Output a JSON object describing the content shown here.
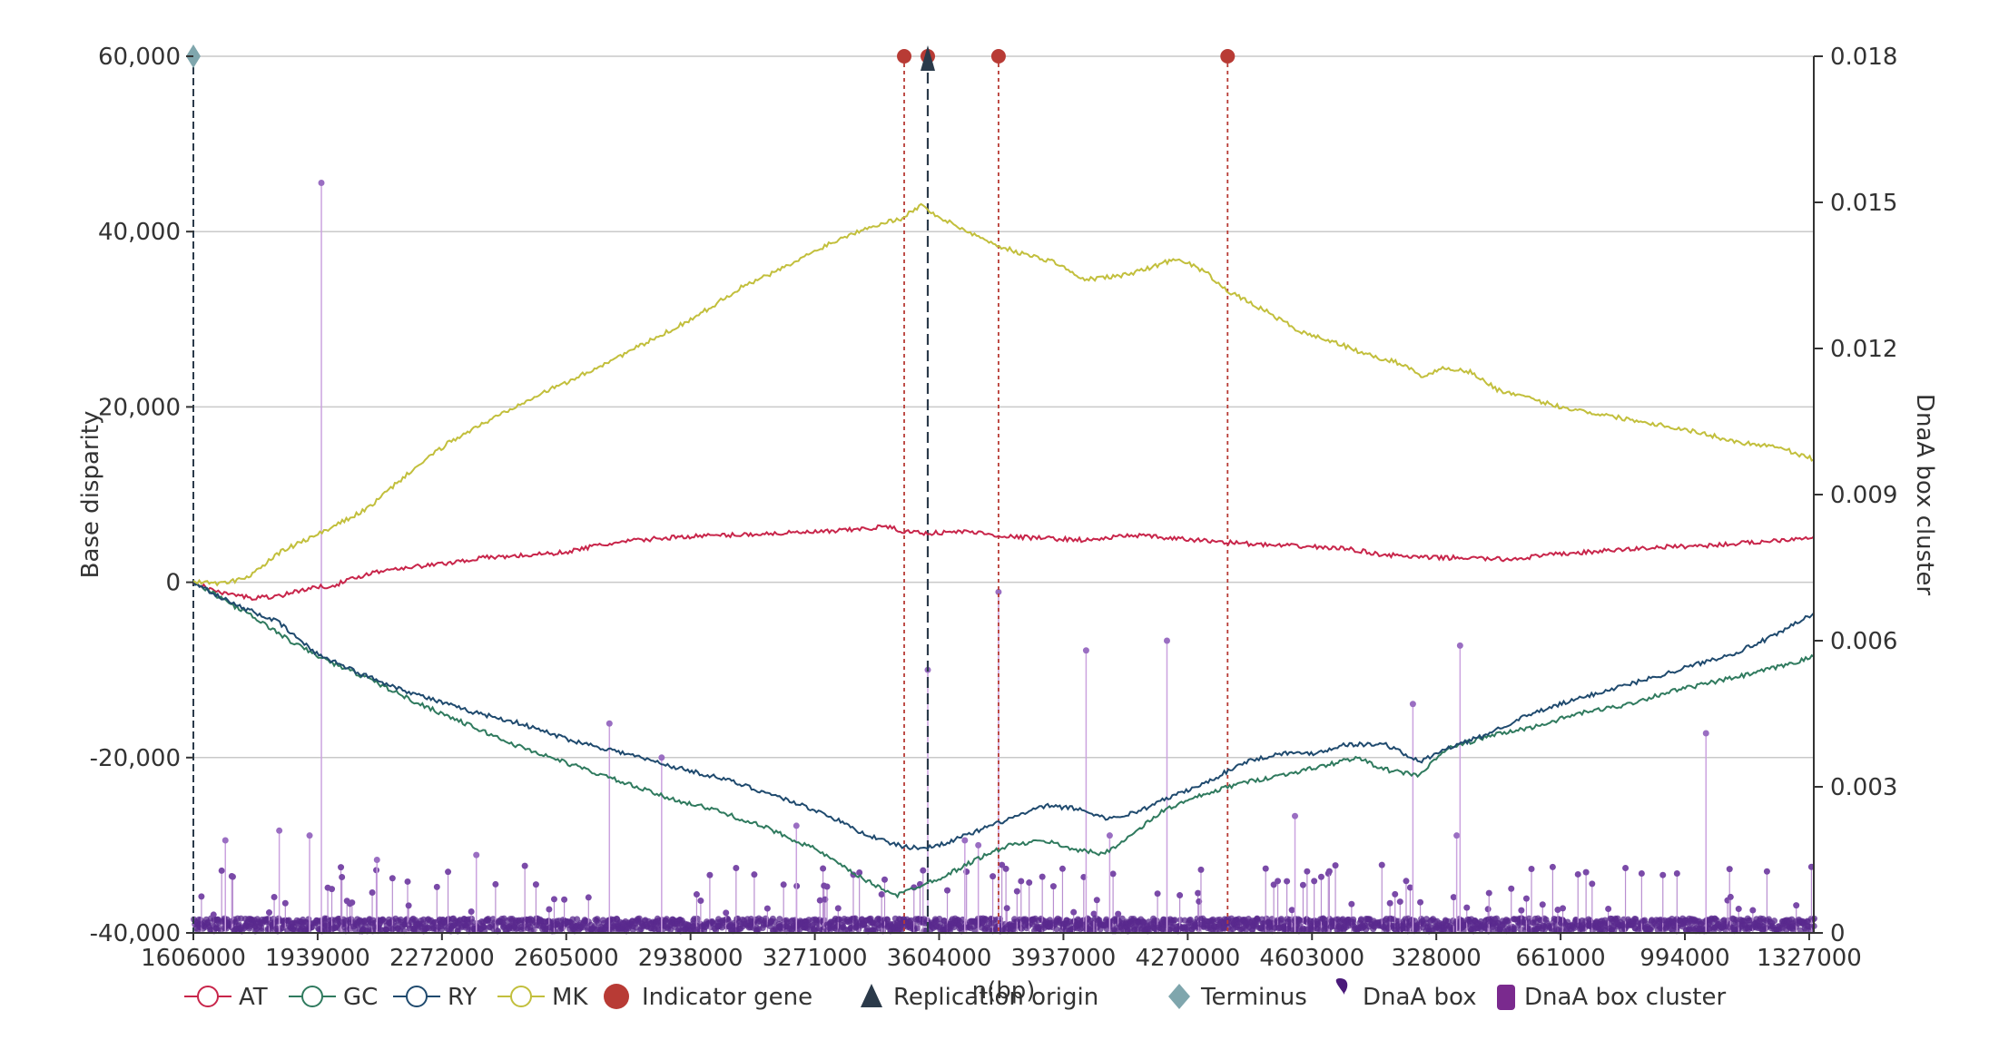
{
  "chart_data": {
    "type": "line",
    "title": "",
    "xlabel": "n(bp)",
    "ylabel": "Base disparity",
    "y2label": "DnaA box cluster",
    "x_ticks": [
      "1606000",
      "1939000",
      "2272000",
      "2605000",
      "2938000",
      "3271000",
      "3604000",
      "3937000",
      "4270000",
      "4603000",
      "328000",
      "661000",
      "994000",
      "1327000"
    ],
    "x_tick_positions_bp_offset_note": "",
    "y_ticks": [
      "60,000",
      "40,000",
      "20,000",
      "0",
      "-20,000",
      "-40,000"
    ],
    "y_tick_values": [
      60000,
      40000,
      20000,
      0,
      -20000,
      -40000
    ],
    "ylim": [
      -40000,
      60000
    ],
    "y2_ticks": [
      "0.018",
      "0.015",
      "0.012",
      "0.009",
      "0.006",
      "0.003",
      "0"
    ],
    "y2_tick_values": [
      0.018,
      0.015,
      0.012,
      0.009,
      0.006,
      0.003,
      0
    ],
    "y2lim": [
      0,
      0.018
    ],
    "grid": "horizontal",
    "legend_position": "bottom",
    "genome_x_range_index": [
      0,
      4810
    ],
    "series": [
      {
        "name": "AT",
        "color": "#c8254a",
        "points": [
          [
            0,
            0
          ],
          [
            80,
            -1200
          ],
          [
            180,
            -1800
          ],
          [
            260,
            -1500
          ],
          [
            330,
            -800
          ],
          [
            420,
            -300
          ],
          [
            520,
            1000
          ],
          [
            600,
            1600
          ],
          [
            720,
            2000
          ],
          [
            860,
            2800
          ],
          [
            960,
            3000
          ],
          [
            1100,
            3400
          ],
          [
            1200,
            4200
          ],
          [
            1320,
            4800
          ],
          [
            1450,
            5200
          ],
          [
            1600,
            5400
          ],
          [
            1750,
            5600
          ],
          [
            1900,
            5800
          ],
          [
            2020,
            6200
          ],
          [
            2050,
            6400
          ],
          [
            2110,
            5800
          ],
          [
            2180,
            5600
          ],
          [
            2300,
            5800
          ],
          [
            2420,
            5200
          ],
          [
            2540,
            5000
          ],
          [
            2660,
            4800
          ],
          [
            2790,
            5400
          ],
          [
            2900,
            5000
          ],
          [
            3060,
            4600
          ],
          [
            3200,
            4200
          ],
          [
            3300,
            4100
          ],
          [
            3430,
            3800
          ],
          [
            3520,
            3200
          ],
          [
            3650,
            2800
          ],
          [
            3770,
            2800
          ],
          [
            3900,
            2600
          ],
          [
            4050,
            3200
          ],
          [
            4200,
            3600
          ],
          [
            4350,
            4000
          ],
          [
            4500,
            4200
          ],
          [
            4650,
            4600
          ],
          [
            4810,
            5200
          ]
        ]
      },
      {
        "name": "GC",
        "color": "#2f7a5e",
        "points": [
          [
            0,
            0
          ],
          [
            100,
            -2200
          ],
          [
            200,
            -4500
          ],
          [
            300,
            -7000
          ],
          [
            400,
            -9000
          ],
          [
            520,
            -11000
          ],
          [
            650,
            -13500
          ],
          [
            800,
            -16000
          ],
          [
            950,
            -18500
          ],
          [
            1100,
            -20500
          ],
          [
            1250,
            -22500
          ],
          [
            1400,
            -24500
          ],
          [
            1550,
            -26000
          ],
          [
            1700,
            -28000
          ],
          [
            1850,
            -30500
          ],
          [
            1950,
            -33000
          ],
          [
            2020,
            -34500
          ],
          [
            2090,
            -35700
          ],
          [
            2150,
            -34700
          ],
          [
            2230,
            -33500
          ],
          [
            2330,
            -31500
          ],
          [
            2420,
            -30000
          ],
          [
            2530,
            -29500
          ],
          [
            2620,
            -30500
          ],
          [
            2700,
            -31000
          ],
          [
            2780,
            -29000
          ],
          [
            2880,
            -26000
          ],
          [
            2980,
            -24500
          ],
          [
            3100,
            -23000
          ],
          [
            3230,
            -22000
          ],
          [
            3350,
            -21000
          ],
          [
            3450,
            -20000
          ],
          [
            3550,
            -21500
          ],
          [
            3640,
            -22000
          ],
          [
            3720,
            -19000
          ],
          [
            3850,
            -17500
          ],
          [
            3980,
            -16500
          ],
          [
            4110,
            -15000
          ],
          [
            4250,
            -14000
          ],
          [
            4380,
            -12500
          ],
          [
            4500,
            -11500
          ],
          [
            4620,
            -10500
          ],
          [
            4720,
            -9500
          ],
          [
            4810,
            -8500
          ]
        ]
      },
      {
        "name": "RY",
        "color": "#1f4a6e",
        "points": [
          [
            0,
            0
          ],
          [
            120,
            -2500
          ],
          [
            250,
            -4500
          ],
          [
            360,
            -8000
          ],
          [
            500,
            -10500
          ],
          [
            640,
            -12500
          ],
          [
            800,
            -14500
          ],
          [
            960,
            -16000
          ],
          [
            1120,
            -18000
          ],
          [
            1280,
            -19500
          ],
          [
            1420,
            -21000
          ],
          [
            1580,
            -22500
          ],
          [
            1740,
            -24500
          ],
          [
            1880,
            -26500
          ],
          [
            1980,
            -28500
          ],
          [
            2050,
            -29500
          ],
          [
            2110,
            -30200
          ],
          [
            2180,
            -30300
          ],
          [
            2250,
            -29500
          ],
          [
            2320,
            -28500
          ],
          [
            2420,
            -27000
          ],
          [
            2530,
            -25500
          ],
          [
            2620,
            -25800
          ],
          [
            2720,
            -27000
          ],
          [
            2800,
            -26200
          ],
          [
            2900,
            -24500
          ],
          [
            3000,
            -23000
          ],
          [
            3120,
            -20500
          ],
          [
            3230,
            -19500
          ],
          [
            3330,
            -19500
          ],
          [
            3420,
            -18500
          ],
          [
            3540,
            -18500
          ],
          [
            3640,
            -20500
          ],
          [
            3720,
            -19000
          ],
          [
            3830,
            -17500
          ],
          [
            3940,
            -15500
          ],
          [
            4050,
            -14000
          ],
          [
            4180,
            -12500
          ],
          [
            4320,
            -11000
          ],
          [
            4450,
            -9500
          ],
          [
            4580,
            -8000
          ],
          [
            4700,
            -6000
          ],
          [
            4810,
            -3500
          ]
        ]
      },
      {
        "name": "MK",
        "color": "#c2bf3c",
        "points": [
          [
            0,
            0
          ],
          [
            100,
            -100
          ],
          [
            170,
            800
          ],
          [
            260,
            3500
          ],
          [
            400,
            6000
          ],
          [
            520,
            8500
          ],
          [
            640,
            12500
          ],
          [
            760,
            16000
          ],
          [
            880,
            18500
          ],
          [
            1000,
            21000
          ],
          [
            1120,
            23000
          ],
          [
            1250,
            25500
          ],
          [
            1380,
            28000
          ],
          [
            1500,
            30500
          ],
          [
            1620,
            33500
          ],
          [
            1760,
            36000
          ],
          [
            1880,
            38500
          ],
          [
            2000,
            40500
          ],
          [
            2100,
            41500
          ],
          [
            2160,
            43000
          ],
          [
            2220,
            41500
          ],
          [
            2300,
            40000
          ],
          [
            2380,
            38500
          ],
          [
            2460,
            37500
          ],
          [
            2560,
            36500
          ],
          [
            2640,
            34500
          ],
          [
            2760,
            35000
          ],
          [
            2850,
            36000
          ],
          [
            2920,
            37000
          ],
          [
            3000,
            35500
          ],
          [
            3080,
            33000
          ],
          [
            3180,
            31000
          ],
          [
            3290,
            28500
          ],
          [
            3380,
            27500
          ],
          [
            3480,
            26000
          ],
          [
            3580,
            25000
          ],
          [
            3650,
            23500
          ],
          [
            3720,
            24500
          ],
          [
            3790,
            24000
          ],
          [
            3870,
            22000
          ],
          [
            3960,
            21000
          ],
          [
            4060,
            20000
          ],
          [
            4200,
            19000
          ],
          [
            4350,
            18000
          ],
          [
            4480,
            17000
          ],
          [
            4580,
            16000
          ],
          [
            4700,
            15500
          ],
          [
            4810,
            14000
          ]
        ]
      }
    ],
    "indicator_genes_index": [
      2110,
      2390,
      3070
    ],
    "replication_origin_index": 2180,
    "terminus_index": 0,
    "dnaa_box_tall_spikes": [
      {
        "i": 380,
        "v": 0.0154
      },
      {
        "i": 95,
        "v": 0.0019
      },
      {
        "i": 255,
        "v": 0.0021
      },
      {
        "i": 345,
        "v": 0.002
      },
      {
        "i": 545,
        "v": 0.0015
      },
      {
        "i": 840,
        "v": 0.0016
      },
      {
        "i": 1235,
        "v": 0.0043
      },
      {
        "i": 1390,
        "v": 0.0036
      },
      {
        "i": 1790,
        "v": 0.0022
      },
      {
        "i": 2180,
        "v": 0.0054
      },
      {
        "i": 2290,
        "v": 0.0019
      },
      {
        "i": 2330,
        "v": 0.0018
      },
      {
        "i": 2390,
        "v": 0.007
      },
      {
        "i": 2650,
        "v": 0.0058
      },
      {
        "i": 2720,
        "v": 0.002
      },
      {
        "i": 2890,
        "v": 0.006
      },
      {
        "i": 3270,
        "v": 0.0024
      },
      {
        "i": 3620,
        "v": 0.0047
      },
      {
        "i": 3750,
        "v": 0.002
      },
      {
        "i": 3760,
        "v": 0.0059
      },
      {
        "i": 4490,
        "v": 0.0041
      }
    ]
  },
  "legend": [
    {
      "label": "AT",
      "color": "#c8254a",
      "icon": "line-circle-icon"
    },
    {
      "label": "GC",
      "color": "#2f7a5e",
      "icon": "line-circle-icon"
    },
    {
      "label": "RY",
      "color": "#1f4a6e",
      "icon": "line-circle-icon"
    },
    {
      "label": "MK",
      "color": "#c2bf3c",
      "icon": "line-circle-icon"
    },
    {
      "label": "Indicator gene",
      "color": "#b83b35",
      "icon": "filled-circle-icon"
    },
    {
      "label": "Replication origin",
      "color": "#2b3a4a",
      "icon": "triangle-icon"
    },
    {
      "label": "Terminus",
      "color": "#7fa6ad",
      "icon": "diamond-icon"
    },
    {
      "label": "DnaA box",
      "color": "#4a1a7a",
      "icon": "pin-icon"
    },
    {
      "label": "DnaA box cluster",
      "color": "#7a2a8e",
      "icon": "rounded-rect-icon"
    }
  ]
}
